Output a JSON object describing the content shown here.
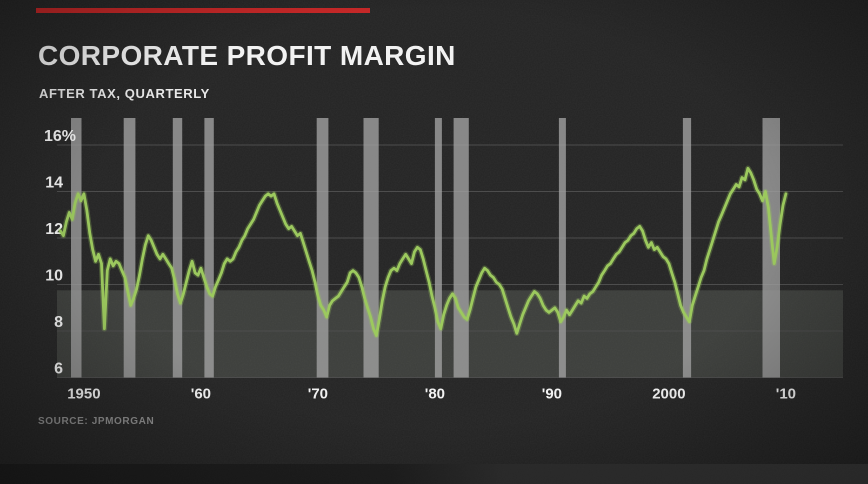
{
  "header": {
    "title": "CORPORATE PROFIT MARGIN",
    "subtitle": "AFTER TAX, QUARTERLY"
  },
  "footer": {
    "source": "SOURCE: JPMORGAN"
  },
  "palette": {
    "background": "#232323",
    "accent_red": "#c62828",
    "line_green": "#9cc95e",
    "grid": "#4d4d4d",
    "recession_bar": "#a3a3a3",
    "shaded_band": "rgba(200,212,196,0.15)",
    "text": "#f2f2f2",
    "muted_text": "#8f8f8f"
  },
  "chart_data": {
    "type": "line",
    "title": "CORPORATE PROFIT MARGIN",
    "subtitle": "AFTER TAX, QUARTERLY",
    "source": "SOURCE: JPMORGAN",
    "xlabel": "",
    "ylabel": "",
    "ylim": [
      6,
      16
    ],
    "xlim": [
      1948,
      2013
    ],
    "grid": "horizontal",
    "legend": "none",
    "y_ticks": [
      {
        "value": 16,
        "label": "16%"
      },
      {
        "value": 14,
        "label": "14"
      },
      {
        "value": 12,
        "label": "12"
      },
      {
        "value": 10,
        "label": "10"
      },
      {
        "value": 8,
        "label": "8"
      },
      {
        "value": 6,
        "label": "6"
      }
    ],
    "x_ticks": [
      {
        "value": 1950,
        "label": "1950"
      },
      {
        "value": 1960,
        "label": "'60"
      },
      {
        "value": 1970,
        "label": "'70"
      },
      {
        "value": 1980,
        "label": "'80"
      },
      {
        "value": 1990,
        "label": "'90"
      },
      {
        "value": 2000,
        "label": "2000"
      },
      {
        "value": 2010,
        "label": "'10"
      }
    ],
    "shaded_band": {
      "from": 6,
      "to": 9.75
    },
    "recession_bands": [
      [
        1948.9,
        1949.8
      ],
      [
        1953.4,
        1954.4
      ],
      [
        1957.6,
        1958.4
      ],
      [
        1960.3,
        1961.1
      ],
      [
        1969.9,
        1970.9
      ],
      [
        1973.9,
        1975.2
      ],
      [
        1980.0,
        1980.6
      ],
      [
        1981.6,
        1982.9
      ],
      [
        1990.6,
        1991.2
      ],
      [
        2001.2,
        2001.9
      ],
      [
        2008.0,
        2009.5
      ]
    ],
    "series": [
      {
        "name": "After-tax corporate profit margin (%), quarterly",
        "x_start": 1948,
        "x_step": 0.25,
        "values": [
          12.3,
          12.1,
          12.7,
          13.1,
          12.8,
          13.5,
          13.9,
          13.6,
          13.9,
          13.2,
          12.2,
          11.5,
          11.0,
          11.3,
          10.9,
          8.1,
          10.6,
          11.1,
          10.8,
          11.0,
          10.9,
          10.6,
          10.3,
          9.7,
          9.1,
          9.4,
          9.8,
          10.4,
          11.1,
          11.7,
          12.1,
          11.9,
          11.6,
          11.3,
          11.1,
          11.3,
          11.1,
          10.9,
          10.7,
          10.2,
          9.6,
          9.2,
          9.6,
          10.1,
          10.6,
          11.0,
          10.5,
          10.4,
          10.7,
          10.3,
          9.9,
          9.6,
          9.5,
          9.9,
          10.2,
          10.5,
          10.9,
          11.1,
          11.0,
          11.1,
          11.4,
          11.6,
          11.9,
          12.1,
          12.4,
          12.6,
          12.8,
          13.1,
          13.4,
          13.6,
          13.8,
          13.9,
          13.8,
          13.9,
          13.5,
          13.2,
          12.9,
          12.6,
          12.4,
          12.5,
          12.3,
          12.1,
          12.2,
          11.8,
          11.4,
          11.0,
          10.6,
          10.1,
          9.5,
          9.1,
          8.9,
          8.6,
          9.1,
          9.3,
          9.4,
          9.5,
          9.7,
          9.9,
          10.1,
          10.5,
          10.6,
          10.5,
          10.3,
          9.9,
          9.4,
          9.0,
          8.6,
          8.1,
          7.8,
          8.5,
          9.3,
          9.9,
          10.3,
          10.6,
          10.7,
          10.6,
          10.9,
          11.1,
          11.3,
          11.1,
          10.9,
          11.4,
          11.6,
          11.5,
          11.1,
          10.6,
          10.1,
          9.5,
          9.0,
          8.4,
          8.1,
          8.7,
          9.1,
          9.4,
          9.6,
          9.4,
          9.0,
          8.8,
          8.6,
          8.5,
          8.9,
          9.4,
          9.9,
          10.2,
          10.5,
          10.7,
          10.6,
          10.4,
          10.3,
          10.1,
          10.0,
          9.8,
          9.4,
          9.0,
          8.6,
          8.3,
          7.9,
          8.3,
          8.7,
          9.0,
          9.3,
          9.5,
          9.7,
          9.6,
          9.4,
          9.1,
          8.9,
          8.8,
          8.9,
          9.0,
          8.8,
          8.4,
          8.6,
          8.9,
          8.7,
          8.9,
          9.1,
          9.3,
          9.2,
          9.5,
          9.4,
          9.6,
          9.7,
          9.9,
          10.1,
          10.4,
          10.6,
          10.8,
          10.9,
          11.1,
          11.3,
          11.4,
          11.6,
          11.8,
          11.9,
          12.1,
          12.2,
          12.4,
          12.5,
          12.3,
          11.9,
          11.6,
          11.8,
          11.5,
          11.6,
          11.4,
          11.2,
          11.1,
          10.9,
          10.5,
          10.1,
          9.6,
          9.1,
          8.8,
          8.6,
          8.4,
          9.1,
          9.5,
          9.9,
          10.3,
          10.6,
          11.1,
          11.5,
          11.9,
          12.3,
          12.7,
          13.0,
          13.3,
          13.6,
          13.9,
          14.1,
          14.3,
          14.2,
          14.6,
          14.5,
          15.0,
          14.8,
          14.5,
          14.1,
          13.9,
          13.6,
          14.0,
          13.3,
          12.1,
          10.9,
          11.6,
          12.6,
          13.4,
          13.9
        ]
      }
    ]
  }
}
